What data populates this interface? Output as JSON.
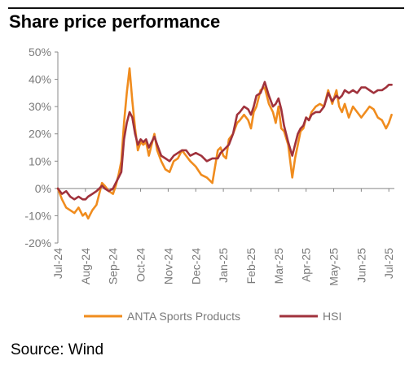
{
  "title": "Share price performance",
  "source": "Source: Wind",
  "chart_data": {
    "type": "line",
    "title": "Share price performance",
    "xlabel": "",
    "ylabel": "",
    "ylim": [
      -20,
      50
    ],
    "yticks": [
      "50%",
      "40%",
      "30%",
      "20%",
      "10%",
      "0%",
      "-10%",
      "-20%"
    ],
    "ytick_values": [
      50,
      40,
      30,
      20,
      10,
      0,
      -10,
      -20
    ],
    "xticks": [
      "Jul-24",
      "Aug-24",
      "Sep-24",
      "Oct-24",
      "Nov-24",
      "Dec-24",
      "Jan-25",
      "Feb-25",
      "Mar-25",
      "Apr-25",
      "May-25",
      "Jun-25",
      "Jul-25"
    ],
    "xrange": [
      0,
      12.2
    ],
    "grid": false,
    "legend": "bottom",
    "series": [
      {
        "name": "ANTA Sports Products",
        "color": "#f08c1e",
        "x": [
          0,
          0.15,
          0.3,
          0.45,
          0.6,
          0.75,
          0.9,
          1.0,
          1.1,
          1.25,
          1.4,
          1.5,
          1.6,
          1.7,
          1.85,
          2.0,
          2.1,
          2.2,
          2.3,
          2.4,
          2.5,
          2.6,
          2.7,
          2.8,
          2.9,
          3.0,
          3.1,
          3.2,
          3.3,
          3.4,
          3.5,
          3.6,
          3.75,
          3.9,
          4.05,
          4.2,
          4.35,
          4.5,
          4.65,
          4.8,
          5.0,
          5.2,
          5.4,
          5.6,
          5.8,
          5.9,
          6.0,
          6.1,
          6.2,
          6.35,
          6.5,
          6.6,
          6.75,
          6.9,
          7.0,
          7.1,
          7.2,
          7.35,
          7.5,
          7.65,
          7.8,
          7.9,
          8.0,
          8.1,
          8.2,
          8.35,
          8.5,
          8.6,
          8.7,
          8.8,
          8.9,
          9.0,
          9.1,
          9.2,
          9.35,
          9.5,
          9.65,
          9.8,
          9.95,
          10.1,
          10.2,
          10.3,
          10.4,
          10.55,
          10.7,
          10.85,
          11.0,
          11.15,
          11.3,
          11.45,
          11.6,
          11.75,
          11.9,
          12.0,
          12.1
        ],
        "y": [
          0,
          -4,
          -7,
          -8,
          -9,
          -7,
          -10,
          -9,
          -11,
          -8,
          -6,
          -2,
          2,
          1,
          -1,
          -2,
          1,
          5,
          10,
          24,
          35,
          44,
          32,
          22,
          14,
          17,
          16,
          17,
          12,
          16,
          20,
          14,
          10,
          7,
          6,
          10,
          11,
          14,
          12,
          10,
          8,
          5,
          4,
          2,
          14,
          15,
          12,
          11,
          18,
          20,
          24,
          25,
          27,
          25,
          22,
          28,
          30,
          36,
          37,
          31,
          28,
          24,
          30,
          22,
          21,
          16,
          4,
          11,
          16,
          21,
          22,
          26,
          25,
          28,
          30,
          31,
          30,
          36,
          31,
          36,
          30,
          28,
          31,
          26,
          30,
          28,
          26,
          28,
          30,
          29,
          26,
          25,
          22,
          24,
          27
        ]
      },
      {
        "name": "HSI",
        "color": "#a0323c",
        "x": [
          0,
          0.15,
          0.3,
          0.45,
          0.6,
          0.75,
          0.9,
          1.0,
          1.1,
          1.25,
          1.4,
          1.5,
          1.6,
          1.7,
          1.85,
          2.0,
          2.1,
          2.2,
          2.3,
          2.4,
          2.5,
          2.6,
          2.7,
          2.8,
          2.9,
          3.0,
          3.1,
          3.2,
          3.3,
          3.4,
          3.5,
          3.6,
          3.75,
          3.9,
          4.05,
          4.2,
          4.35,
          4.5,
          4.65,
          4.8,
          5.0,
          5.2,
          5.4,
          5.6,
          5.8,
          5.9,
          6.0,
          6.1,
          6.2,
          6.35,
          6.5,
          6.6,
          6.75,
          6.9,
          7.0,
          7.1,
          7.2,
          7.35,
          7.5,
          7.65,
          7.8,
          7.9,
          8.0,
          8.1,
          8.2,
          8.35,
          8.5,
          8.6,
          8.7,
          8.8,
          8.9,
          9.0,
          9.1,
          9.2,
          9.35,
          9.5,
          9.65,
          9.8,
          9.95,
          10.1,
          10.2,
          10.3,
          10.4,
          10.55,
          10.7,
          10.85,
          11.0,
          11.15,
          11.3,
          11.45,
          11.6,
          11.75,
          11.9,
          12.0,
          12.1
        ],
        "y": [
          0,
          -2,
          -1,
          -3,
          -4,
          -3,
          -4,
          -4,
          -3,
          -2,
          -1,
          0,
          1,
          0,
          -1,
          0,
          2,
          4,
          6,
          18,
          24,
          28,
          26,
          20,
          16,
          18,
          17,
          18,
          15,
          17,
          19,
          16,
          12,
          11,
          10,
          12,
          13,
          14,
          14,
          12,
          13,
          12,
          10,
          11,
          11,
          13,
          14,
          15,
          16,
          20,
          27,
          28,
          30,
          29,
          27,
          30,
          34,
          35,
          39,
          34,
          30,
          31,
          33,
          29,
          23,
          17,
          12,
          16,
          20,
          22,
          23,
          26,
          25,
          27,
          28,
          28,
          30,
          35,
          32,
          34,
          33,
          34,
          36,
          35,
          36,
          35,
          37,
          37,
          36,
          35,
          36,
          36,
          37,
          38,
          38
        ]
      }
    ]
  }
}
